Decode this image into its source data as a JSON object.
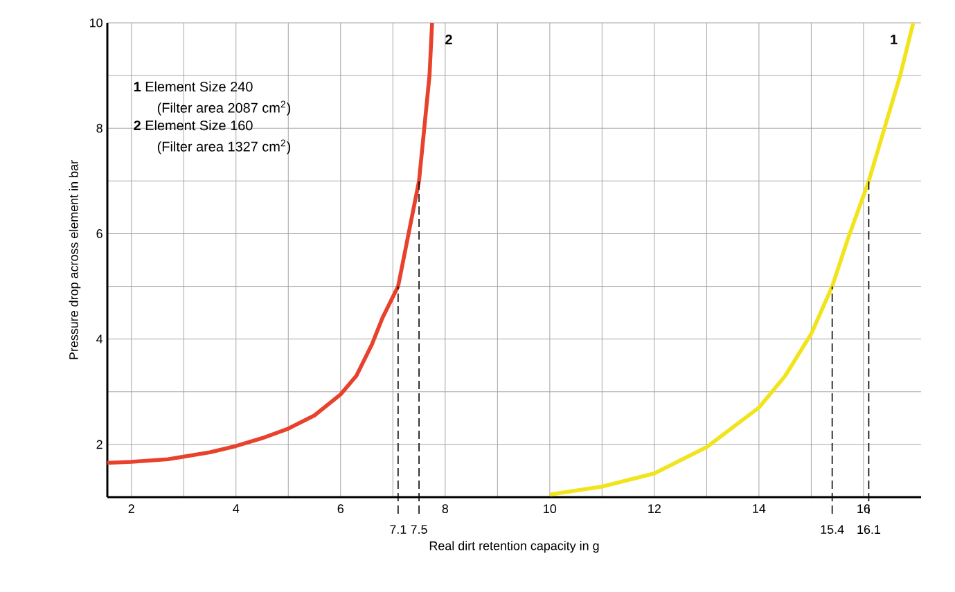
{
  "chart_data": {
    "type": "line",
    "xlabel": "Real dirt retention capacity in g",
    "ylabel": "Pressure drop across element in bar",
    "xlim": [
      1.54,
      17.1
    ],
    "ylim": [
      1,
      10
    ],
    "xticks": [
      2,
      {
        "value": 3,
        "label": null
      },
      4,
      {
        "value": 5,
        "label": null
      },
      6,
      {
        "value": 7,
        "label": null
      },
      8,
      {
        "value": 9,
        "label": null
      },
      10,
      {
        "value": 11,
        "label": null
      },
      12,
      {
        "value": 13,
        "label": null
      },
      14,
      {
        "value": 15,
        "label": null
      },
      16
    ],
    "yticks": [
      {
        "value": 2,
        "label": "2"
      },
      {
        "value": 3,
        "label": null
      },
      4,
      {
        "value": 5,
        "label": null
      },
      6,
      {
        "value": 7,
        "label": null
      },
      8,
      {
        "value": 9,
        "label": null
      },
      10
    ],
    "grid": true,
    "marker": "none",
    "line_style": "solid",
    "series": [
      {
        "name": "2",
        "color": "#e8412c",
        "x": [
          1.54,
          2,
          2.7,
          3.5,
          4,
          4.5,
          5,
          5.5,
          6,
          6.3,
          6.6,
          6.8,
          7.0,
          7.1,
          7.3,
          7.5,
          7.6,
          7.7,
          7.75
        ],
        "values": [
          1.65,
          1.67,
          1.72,
          1.85,
          1.97,
          2.12,
          2.3,
          2.55,
          2.95,
          3.3,
          3.9,
          4.4,
          4.8,
          5,
          6.0,
          7,
          8.0,
          9.0,
          10
        ]
      },
      {
        "name": "1",
        "color": "#f2e41c",
        "x": [
          10,
          11,
          12,
          13,
          14,
          14.5,
          15,
          15.4,
          15.7,
          16.1,
          16.4,
          16.7,
          16.95
        ],
        "values": [
          1.05,
          1.2,
          1.45,
          1.95,
          2.7,
          3.3,
          4.1,
          5,
          5.9,
          7,
          8,
          9,
          10
        ]
      }
    ],
    "ref_lines": [
      {
        "axis": "x",
        "value": 7.1,
        "label": "7.1",
        "line_style": "dashed"
      },
      {
        "axis": "x",
        "value": 7.5,
        "label": "7.5",
        "line_style": "dashed"
      },
      {
        "axis": "x",
        "value": 15.4,
        "label": "15.4",
        "line_style": "dashed"
      },
      {
        "axis": "x",
        "value": 16.1,
        "label": "16.1",
        "line_style": "dashed"
      }
    ],
    "annotations": [
      "**1**  Element Size 240",
      "(Filter area 2087 cm$^{2}$)",
      "**2**  Element Size 160",
      "(Filter area 1327 cm$^{2}$)"
    ]
  }
}
